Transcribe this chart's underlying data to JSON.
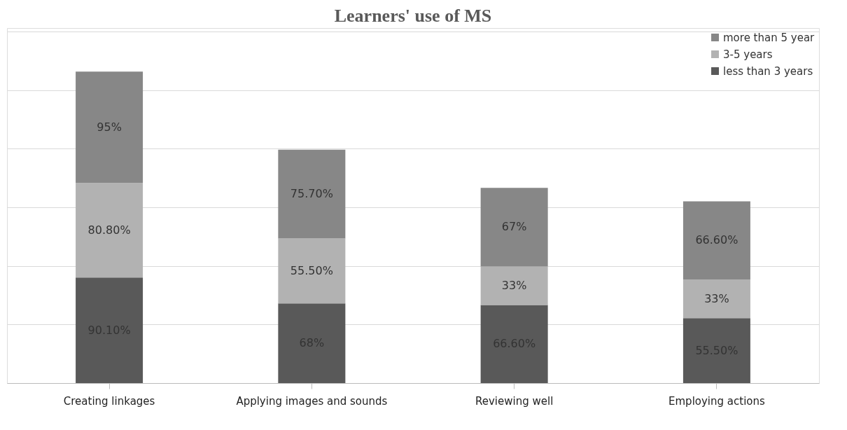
{
  "chart_data": {
    "type": "bar",
    "title": "Learners' use of MS",
    "stacked": true,
    "data_labels": true,
    "grid": "y",
    "legend": "top right",
    "tick_labels": "x",
    "categories": [
      "Creating linkages",
      "Applying images and sounds",
      "Reviewing well",
      "Employing actions"
    ],
    "series": [
      {
        "name": "less than 3 years",
        "color": "#595959",
        "values": [
          90.1,
          68,
          66.6,
          55.5
        ],
        "value_labels": [
          "90.10%",
          "68%",
          "66.60%",
          "55.50%"
        ]
      },
      {
        "name": "3-5 years",
        "color": "#b2b2b2",
        "values": [
          80.8,
          55.5,
          33,
          33
        ],
        "value_labels": [
          "80.80%",
          "55.50%",
          "33%",
          "33%"
        ]
      },
      {
        "name": "more than 5 year",
        "color": "#878787",
        "values": [
          95,
          75.7,
          67,
          66.6
        ],
        "value_labels": [
          "95%",
          "75.70%",
          "67%",
          "66.60%"
        ]
      }
    ]
  }
}
